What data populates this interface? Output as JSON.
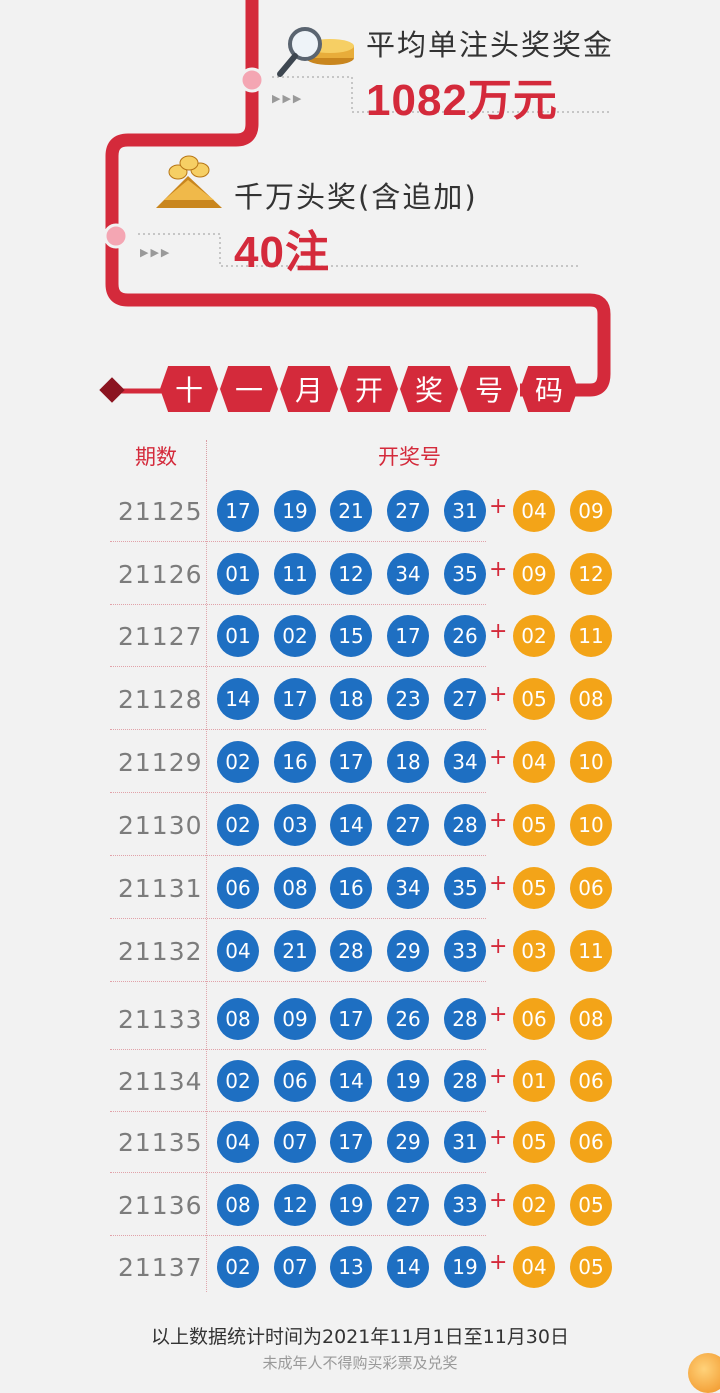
{
  "colors": {
    "accent": "#d42a3b",
    "blue_ball": "#1e6fc2",
    "gold_ball": "#f3a418",
    "background": "#f2f2f2"
  },
  "stat1": {
    "label": "平均单注头奖奖金",
    "value": "1082万元",
    "icon": "magnifier-coins-icon"
  },
  "stat2": {
    "label": "千万头奖(含追加)",
    "value": "40注",
    "icon": "coin-stack-icon"
  },
  "banner": {
    "chars": [
      "十",
      "一",
      "月",
      "开",
      "奖",
      "号",
      "码"
    ]
  },
  "table": {
    "headers": {
      "issue": "期数",
      "numbers": "开奖号"
    },
    "plus": "+",
    "rows": [
      {
        "issue": "21125",
        "front": [
          "17",
          "19",
          "21",
          "27",
          "31"
        ],
        "back": [
          "04",
          "09"
        ]
      },
      {
        "issue": "21126",
        "front": [
          "01",
          "11",
          "12",
          "34",
          "35"
        ],
        "back": [
          "09",
          "12"
        ]
      },
      {
        "issue": "21127",
        "front": [
          "01",
          "02",
          "15",
          "17",
          "26"
        ],
        "back": [
          "02",
          "11"
        ]
      },
      {
        "issue": "21128",
        "front": [
          "14",
          "17",
          "18",
          "23",
          "27"
        ],
        "back": [
          "05",
          "08"
        ]
      },
      {
        "issue": "21129",
        "front": [
          "02",
          "16",
          "17",
          "18",
          "34"
        ],
        "back": [
          "04",
          "10"
        ]
      },
      {
        "issue": "21130",
        "front": [
          "02",
          "03",
          "14",
          "27",
          "28"
        ],
        "back": [
          "05",
          "10"
        ]
      },
      {
        "issue": "21131",
        "front": [
          "06",
          "08",
          "16",
          "34",
          "35"
        ],
        "back": [
          "05",
          "06"
        ]
      },
      {
        "issue": "21132",
        "front": [
          "04",
          "21",
          "28",
          "29",
          "33"
        ],
        "back": [
          "03",
          "11"
        ]
      },
      {
        "issue": "21133",
        "front": [
          "08",
          "09",
          "17",
          "26",
          "28"
        ],
        "back": [
          "06",
          "08"
        ]
      },
      {
        "issue": "21134",
        "front": [
          "02",
          "06",
          "14",
          "19",
          "28"
        ],
        "back": [
          "01",
          "06"
        ]
      },
      {
        "issue": "21135",
        "front": [
          "04",
          "07",
          "17",
          "29",
          "31"
        ],
        "back": [
          "05",
          "06"
        ]
      },
      {
        "issue": "21136",
        "front": [
          "08",
          "12",
          "19",
          "27",
          "33"
        ],
        "back": [
          "02",
          "05"
        ]
      },
      {
        "issue": "21137",
        "front": [
          "02",
          "07",
          "13",
          "14",
          "19"
        ],
        "back": [
          "04",
          "05"
        ]
      }
    ]
  },
  "footer": {
    "note": "以上数据统计时间为2021年11月1日至11月30日",
    "warning": "未成年人不得购买彩票及兑奖"
  }
}
